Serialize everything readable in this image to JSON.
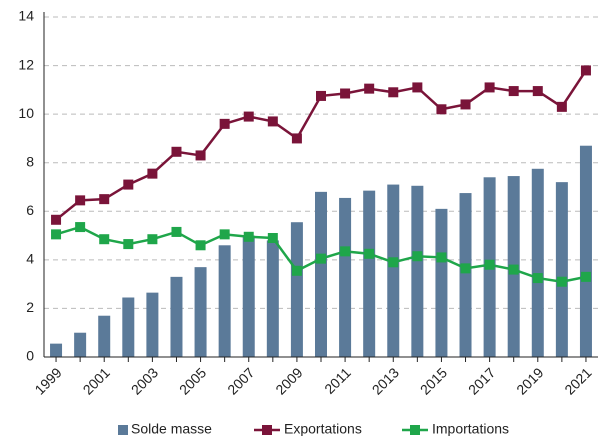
{
  "chart_data": {
    "type": "bar_line",
    "categories": [
      "1999",
      null,
      "2001",
      null,
      "2003",
      null,
      "2005",
      null,
      "2007",
      null,
      "2009",
      null,
      "2011",
      null,
      "2013",
      null,
      "2015",
      null,
      "2017",
      null,
      "2019",
      null,
      "2021"
    ],
    "series": [
      {
        "name": "Solde masse",
        "type": "bar",
        "color": "#5b7a99",
        "values": [
          0.55,
          1.0,
          1.7,
          2.45,
          2.65,
          3.3,
          3.7,
          4.6,
          5.0,
          4.8,
          5.55,
          6.8,
          6.55,
          6.85,
          7.1,
          7.05,
          6.1,
          6.75,
          7.4,
          7.45,
          7.75,
          7.2,
          8.7
        ]
      },
      {
        "name": "Exportations",
        "type": "line",
        "color": "#7a1439",
        "values": [
          5.65,
          6.45,
          6.5,
          7.1,
          7.55,
          8.45,
          8.3,
          9.6,
          9.9,
          9.7,
          9.0,
          10.75,
          10.85,
          11.05,
          10.9,
          11.1,
          10.2,
          10.4,
          11.1,
          10.95,
          10.95,
          10.3,
          11.8
        ]
      },
      {
        "name": "Importations",
        "type": "line",
        "color": "#1fa64a",
        "values": [
          5.05,
          5.35,
          4.85,
          4.65,
          4.85,
          5.15,
          4.6,
          5.05,
          4.95,
          4.9,
          3.55,
          4.05,
          4.35,
          4.25,
          3.9,
          4.15,
          4.1,
          3.65,
          3.8,
          3.6,
          3.25,
          3.1,
          3.3
        ]
      }
    ],
    "ylim": [
      0,
      14
    ],
    "yticks": [
      0,
      2,
      4,
      6,
      8,
      10,
      12,
      14
    ],
    "grid": true,
    "legend": "bottom"
  }
}
